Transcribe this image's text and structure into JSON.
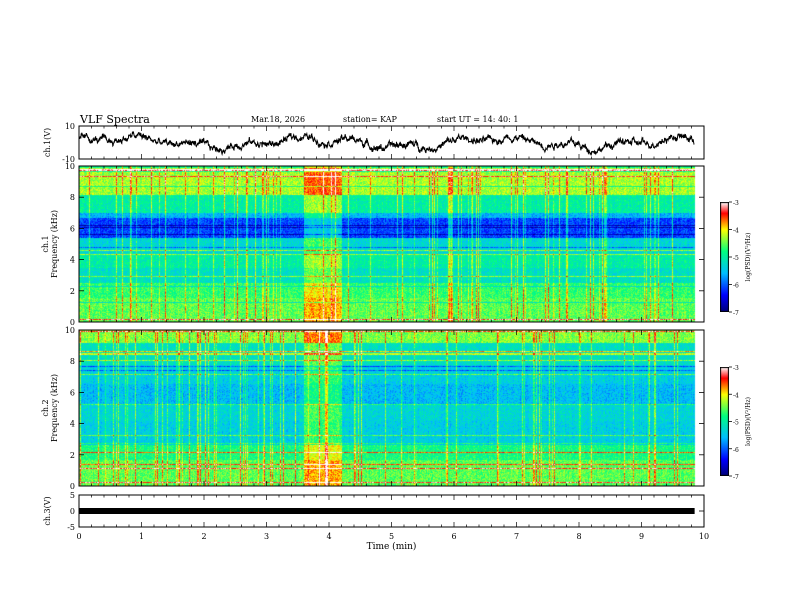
{
  "header": {
    "title": "VLF Spectra",
    "date": "Mar.18, 2026",
    "station": "station= KAP",
    "start_ut": "start  UT =   14: 40: 1"
  },
  "chart_data": [
    {
      "type": "line",
      "name": "ch1-waveform",
      "ylabel": "ch.1(V)",
      "ylim": [
        -10,
        10
      ],
      "ytick_labels": [
        "10",
        "-10"
      ],
      "xlim": [
        0,
        10
      ],
      "data_end_min": 9.85
    },
    {
      "type": "heatmap",
      "name": "ch1-spectrogram",
      "ylabel": "ch.1 Frequency (kHz)",
      "ylim": [
        0,
        10
      ],
      "ytick_labels": [
        "0",
        "2",
        "4",
        "6",
        "8",
        "10"
      ],
      "xlim": [
        0,
        10
      ],
      "data_end_min": 9.85,
      "disturbance_window_min": [
        3.6,
        4.2
      ],
      "colorbar": {
        "label": "log(PSD)(V²/Hz)",
        "range": [
          -7,
          -3
        ],
        "tick_labels": [
          "-3",
          "-4",
          "-5",
          "-6",
          "-7"
        ]
      }
    },
    {
      "type": "heatmap",
      "name": "ch2-spectrogram",
      "ylabel": "ch.2 Frequency (kHz)",
      "ylim": [
        0,
        10
      ],
      "ytick_labels": [
        "0",
        "2",
        "4",
        "6",
        "8",
        "10"
      ],
      "xlim": [
        0,
        10
      ],
      "data_end_min": 9.85,
      "disturbance_window_min": [
        3.6,
        4.2
      ],
      "colorbar": {
        "label": "log(PSD)(V²/Hz)",
        "range": [
          -7,
          -3
        ],
        "tick_labels": [
          "-3",
          "-4",
          "-5",
          "-6",
          "-7"
        ]
      }
    },
    {
      "type": "line",
      "name": "ch3-level",
      "ylabel": "ch.3(V)",
      "ylim": [
        -5,
        5
      ],
      "ytick_labels": [
        "5",
        "0",
        "-5"
      ],
      "level_value_v": 0,
      "xlim": [
        0,
        10
      ],
      "data_end_min": 9.85,
      "xlabel": "Time  (min)",
      "xtick_labels": [
        "0",
        "1",
        "2",
        "3",
        "4",
        "5",
        "6",
        "7",
        "8",
        "9",
        "10"
      ]
    }
  ],
  "colors": {
    "axis": "#000000",
    "waveform": "#000000",
    "colormap": [
      "#00007a",
      "#0000ff",
      "#00bfff",
      "#00ff80",
      "#ffff00",
      "#ff0000",
      "#ffffff"
    ]
  }
}
